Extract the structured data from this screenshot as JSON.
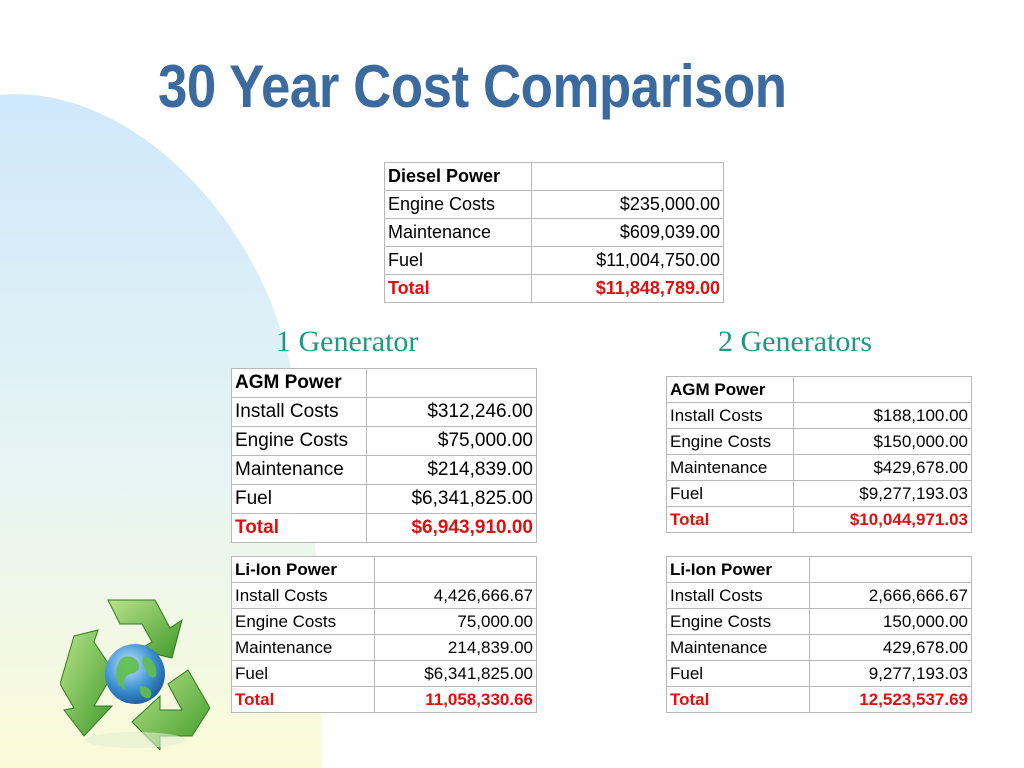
{
  "title": "30 Year Cost Comparison",
  "colors": {
    "title": "#3a6a9e",
    "subhead": "#1a9a86",
    "total": "#e01010",
    "swoosh_blue": "#d6ecfa",
    "swoosh_yellow": "#fdfde0",
    "recycle_green": "#6cc24a"
  },
  "diesel": {
    "header": "Diesel Power",
    "rows": [
      {
        "label": "Engine Costs",
        "value": "$235,000.00"
      },
      {
        "label": "Maintenance",
        "value": "$609,039.00"
      },
      {
        "label": "Fuel",
        "value": "$11,004,750.00"
      }
    ],
    "total": {
      "label": "Total",
      "value": "$11,848,789.00"
    }
  },
  "gen1": {
    "heading": "1 Generator",
    "agm": {
      "header": "AGM Power",
      "rows": [
        {
          "label": "Install Costs",
          "value": "$312,246.00"
        },
        {
          "label": "Engine Costs",
          "value": "$75,000.00"
        },
        {
          "label": "Maintenance",
          "value": "$214,839.00"
        },
        {
          "label": "Fuel",
          "value": "$6,341,825.00"
        }
      ],
      "total": {
        "label": "Total",
        "value": "$6,943,910.00"
      }
    },
    "liion": {
      "header": "Li-Ion Power",
      "rows": [
        {
          "label": "Install Costs",
          "value": "4,426,666.67"
        },
        {
          "label": "Engine Costs",
          "value": "75,000.00"
        },
        {
          "label": "Maintenance",
          "value": "214,839.00"
        },
        {
          "label": "Fuel",
          "value": "$6,341,825.00"
        }
      ],
      "total": {
        "label": "Total",
        "value": "11,058,330.66"
      }
    }
  },
  "gen2": {
    "heading": "2 Generators",
    "agm": {
      "header": "AGM Power",
      "rows": [
        {
          "label": "Install Costs",
          "value": "$188,100.00"
        },
        {
          "label": "Engine Costs",
          "value": "$150,000.00"
        },
        {
          "label": "Maintenance",
          "value": "$429,678.00"
        },
        {
          "label": "Fuel",
          "value": "$9,277,193.03"
        }
      ],
      "total": {
        "label": "Total",
        "value": "$10,044,971.03"
      }
    },
    "liion": {
      "header": "Li-Ion Power",
      "rows": [
        {
          "label": "Install Costs",
          "value": "2,666,666.67"
        },
        {
          "label": "Engine Costs",
          "value": "150,000.00"
        },
        {
          "label": "Maintenance",
          "value": "429,678.00"
        },
        {
          "label": "Fuel",
          "value": "9,277,193.03"
        }
      ],
      "total": {
        "label": "Total",
        "value": "12,523,537.69"
      }
    }
  },
  "decor": {
    "logo_icon": "recycle-globe-icon"
  }
}
